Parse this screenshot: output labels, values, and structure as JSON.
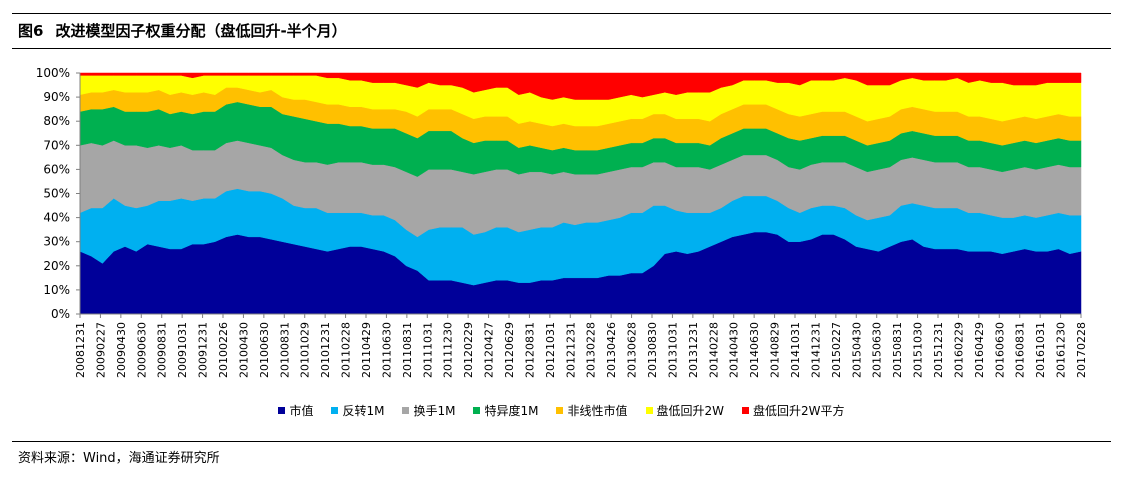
{
  "header": {
    "figure_no": "图6",
    "title": "改进模型因子权重分配（盘低回升-半个月）"
  },
  "footer": {
    "source": "资料来源：Wind，海通证券研究所"
  },
  "chart_data": {
    "type": "area",
    "stacked": true,
    "ylim": [
      0,
      100
    ],
    "yticks": [
      "0%",
      "10%",
      "20%",
      "30%",
      "40%",
      "50%",
      "60%",
      "70%",
      "80%",
      "90%",
      "100%"
    ],
    "xtick_labels": [
      "20081231",
      "20090227",
      "20090430",
      "20090630",
      "20090831",
      "20091031",
      "20091231",
      "20100226",
      "20100430",
      "20100630",
      "20100831",
      "20101029",
      "20101231",
      "20110228",
      "20110429",
      "20110630",
      "20110831",
      "20111031",
      "20111230",
      "20120229",
      "20120427",
      "20120629",
      "20120831",
      "20121031",
      "20121231",
      "20130228",
      "20130426",
      "20130628",
      "20130830",
      "20131031",
      "20131231",
      "20140228",
      "20140430",
      "20140630",
      "20140829",
      "20141031",
      "20141231",
      "20150227",
      "20150430",
      "20150630",
      "20150831",
      "20151030",
      "20151231",
      "20160229",
      "20160429",
      "20160630",
      "20160831",
      "20161031",
      "20161230",
      "20170228"
    ],
    "legend_position": "bottom",
    "series": [
      {
        "name": "市值",
        "color": "#000099",
        "values": [
          26,
          24,
          21,
          26,
          28,
          26,
          29,
          28,
          27,
          27,
          29,
          29,
          30,
          32,
          33,
          32,
          32,
          31,
          30,
          29,
          28,
          27,
          26,
          27,
          28,
          28,
          27,
          26,
          24,
          20,
          18,
          14,
          14,
          14,
          13,
          12,
          13,
          14,
          14,
          13,
          13,
          14,
          14,
          15,
          15,
          15,
          15,
          16,
          16,
          17,
          17,
          20,
          25,
          26,
          25,
          26,
          28,
          30,
          32,
          33,
          34,
          34,
          33,
          30,
          30,
          31,
          33,
          33,
          31,
          28,
          27,
          26,
          28,
          30,
          31,
          28,
          27,
          27,
          27,
          26,
          26,
          26,
          25,
          26,
          27,
          26,
          26,
          27,
          25,
          26
        ]
      },
      {
        "name": "反转1M",
        "color": "#00b0f0",
        "values": [
          16,
          20,
          23,
          22,
          17,
          18,
          16,
          19,
          20,
          21,
          18,
          19,
          18,
          19,
          19,
          19,
          19,
          19,
          18,
          16,
          16,
          17,
          16,
          15,
          14,
          14,
          14,
          15,
          15,
          15,
          14,
          21,
          22,
          22,
          23,
          21,
          21,
          22,
          22,
          21,
          22,
          22,
          22,
          23,
          22,
          23,
          23,
          23,
          24,
          25,
          25,
          25,
          20,
          17,
          17,
          16,
          14,
          14,
          15,
          16,
          15,
          15,
          14,
          14,
          12,
          13,
          12,
          12,
          13,
          13,
          12,
          14,
          13,
          15,
          15,
          17,
          17,
          17,
          17,
          16,
          16,
          15,
          15,
          14,
          14,
          14,
          15,
          15,
          16,
          15
        ]
      },
      {
        "name": "换手1M",
        "color": "#a6a6a6",
        "values": [
          28,
          27,
          26,
          24,
          25,
          26,
          24,
          23,
          22,
          22,
          21,
          20,
          20,
          20,
          20,
          20,
          19,
          19,
          18,
          19,
          19,
          19,
          20,
          21,
          21,
          21,
          21,
          21,
          22,
          24,
          25,
          25,
          24,
          24,
          23,
          25,
          25,
          24,
          24,
          24,
          24,
          23,
          22,
          21,
          21,
          20,
          20,
          20,
          20,
          19,
          19,
          18,
          18,
          18,
          19,
          19,
          18,
          18,
          17,
          17,
          17,
          17,
          17,
          17,
          18,
          18,
          18,
          18,
          19,
          20,
          20,
          20,
          20,
          19,
          19,
          19,
          19,
          19,
          19,
          19,
          19,
          19,
          19,
          20,
          20,
          20,
          20,
          20,
          20,
          20
        ]
      },
      {
        "name": "特异度1M",
        "color": "#00b050",
        "values": [
          14,
          14,
          15,
          14,
          14,
          14,
          15,
          15,
          14,
          14,
          15,
          16,
          16,
          16,
          16,
          16,
          16,
          17,
          17,
          18,
          18,
          17,
          17,
          16,
          15,
          15,
          15,
          15,
          16,
          16,
          16,
          16,
          16,
          16,
          14,
          13,
          13,
          12,
          12,
          11,
          11,
          10,
          10,
          10,
          10,
          10,
          10,
          10,
          10,
          10,
          10,
          10,
          10,
          10,
          10,
          10,
          10,
          11,
          11,
          11,
          11,
          11,
          11,
          12,
          12,
          11,
          11,
          11,
          11,
          11,
          11,
          11,
          11,
          11,
          11,
          11,
          11,
          11,
          11,
          11,
          11,
          11,
          11,
          11,
          11,
          11,
          11,
          11,
          11,
          11
        ]
      },
      {
        "name": "非线性市值",
        "color": "#ffc000",
        "values": [
          7,
          7,
          7,
          7,
          8,
          8,
          8,
          8,
          8,
          8,
          8,
          8,
          7,
          7,
          6,
          6,
          6,
          7,
          7,
          7,
          8,
          8,
          8,
          8,
          8,
          8,
          8,
          8,
          8,
          9,
          9,
          9,
          9,
          9,
          10,
          10,
          10,
          10,
          10,
          10,
          10,
          10,
          10,
          10,
          10,
          10,
          10,
          10,
          10,
          10,
          10,
          10,
          10,
          10,
          10,
          10,
          10,
          10,
          10,
          10,
          10,
          10,
          10,
          10,
          10,
          10,
          10,
          10,
          10,
          10,
          10,
          10,
          10,
          10,
          10,
          10,
          10,
          10,
          10,
          10,
          10,
          10,
          10,
          10,
          10,
          10,
          10,
          10,
          10,
          10
        ]
      },
      {
        "name": "盘低回升2W",
        "color": "#ffff00",
        "values": [
          8,
          7,
          7,
          6,
          7,
          7,
          7,
          6,
          8,
          7,
          7,
          7,
          8,
          5,
          5,
          6,
          7,
          6,
          9,
          10,
          10,
          11,
          11,
          11,
          11,
          11,
          11,
          11,
          11,
          11,
          12,
          11,
          10,
          10,
          11,
          11,
          11,
          12,
          12,
          12,
          12,
          11,
          11,
          11,
          11,
          11,
          11,
          10,
          10,
          10,
          9,
          8,
          9,
          10,
          11,
          11,
          12,
          11,
          10,
          10,
          10,
          10,
          11,
          13,
          13,
          14,
          13,
          13,
          14,
          15,
          15,
          14,
          13,
          12,
          12,
          12,
          13,
          13,
          14,
          14,
          15,
          15,
          16,
          14,
          13,
          14,
          14,
          13,
          14,
          14
        ]
      },
      {
        "name": "盘低回升2W平方",
        "color": "#ff0000",
        "values": [
          1,
          1,
          1,
          1,
          1,
          1,
          1,
          1,
          1,
          1,
          2,
          1,
          1,
          1,
          1,
          1,
          1,
          1,
          3,
          1,
          1,
          2,
          2,
          2,
          3,
          3,
          4,
          4,
          4,
          5,
          6,
          4,
          5,
          5,
          6,
          8,
          7,
          6,
          6,
          9,
          8,
          10,
          11,
          10,
          11,
          11,
          11,
          10,
          9,
          9,
          10,
          9,
          8,
          9,
          8,
          8,
          8,
          6,
          5,
          3,
          3,
          3,
          4,
          1,
          5,
          3,
          3,
          3,
          2,
          3,
          4,
          4,
          4,
          3,
          2,
          2,
          2,
          2,
          1,
          4,
          3,
          4,
          1,
          1,
          3,
          1,
          3,
          1,
          2,
          1
        ]
      }
    ]
  }
}
